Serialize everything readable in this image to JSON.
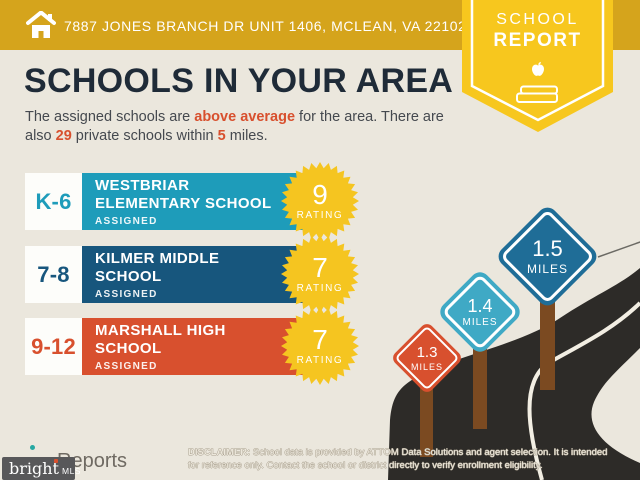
{
  "palette": {
    "header_gold": "#D5A41C",
    "badge_yellow": "#F7C71E",
    "burst_yellow": "#F5C520",
    "background_beige": "#EBE7DD",
    "title_navy": "#1F2B38",
    "body_text": "#45494F",
    "accent_orange": "#D8502E",
    "row_teal": "#1E9CBA",
    "row_navy": "#17567D",
    "road_dark": "#2D2B28",
    "road_line": "#F2EEE3",
    "post_brown": "#7B4A21",
    "sign_teal": "#3FA9C5",
    "sign_blue": "#1F6D97",
    "logo_gray": "#58585A"
  },
  "header": {
    "address": "7887 JONES BRANCH DR UNIT 1406, MCLEAN, VA 22102"
  },
  "badge": {
    "line1": "SCHOOL",
    "line2": "REPORT"
  },
  "page": {
    "title": "SCHOOLS IN YOUR AREA"
  },
  "intro": {
    "l1_part1": "The assigned schools are ",
    "l1_bold": "above average",
    "l1_part2": " for the area. There are",
    "l2_part1": "also ",
    "l2_bold1": "29",
    "l2_part2": " private schools within ",
    "l2_bold2": "5",
    "l2_part3": " miles."
  },
  "schools": [
    {
      "grades": "K-6",
      "name_lines": [
        "WESTBRIAR",
        "ELEMENTARY SCHOOL"
      ],
      "status": "ASSIGNED",
      "rating": "9",
      "rating_label": "RATING",
      "color": "#1E9CBA"
    },
    {
      "grades": "7-8",
      "name_lines": [
        "KILMER MIDDLE",
        "SCHOOL"
      ],
      "status": "ASSIGNED",
      "rating": "7",
      "rating_label": "RATING",
      "color": "#17567D"
    },
    {
      "grades": "9-12",
      "name_lines": [
        "MARSHALL HIGH",
        "SCHOOL"
      ],
      "status": "ASSIGNED",
      "rating": "7",
      "rating_label": "RATING",
      "color": "#D8502E"
    }
  ],
  "signs": [
    {
      "value": "1.3",
      "unit": "MILES",
      "color": "#D8502E"
    },
    {
      "value": "1.4",
      "unit": "MILES",
      "color": "#3FA9C5"
    },
    {
      "value": "1.5",
      "unit": "MILES",
      "color": "#1F6D97"
    }
  ],
  "footer": {
    "logo_main": "bright",
    "logo_suffix": "MLS",
    "reports_label": "Reports",
    "disclaimer_label": "DISCLAIMER:",
    "disclaimer_line1": " School data is provided by ATTOM Data Solutions and agent selection. It is intended",
    "disclaimer_line2": "for reference only. Contact the school or district directly to verify enrollment eligibility."
  }
}
